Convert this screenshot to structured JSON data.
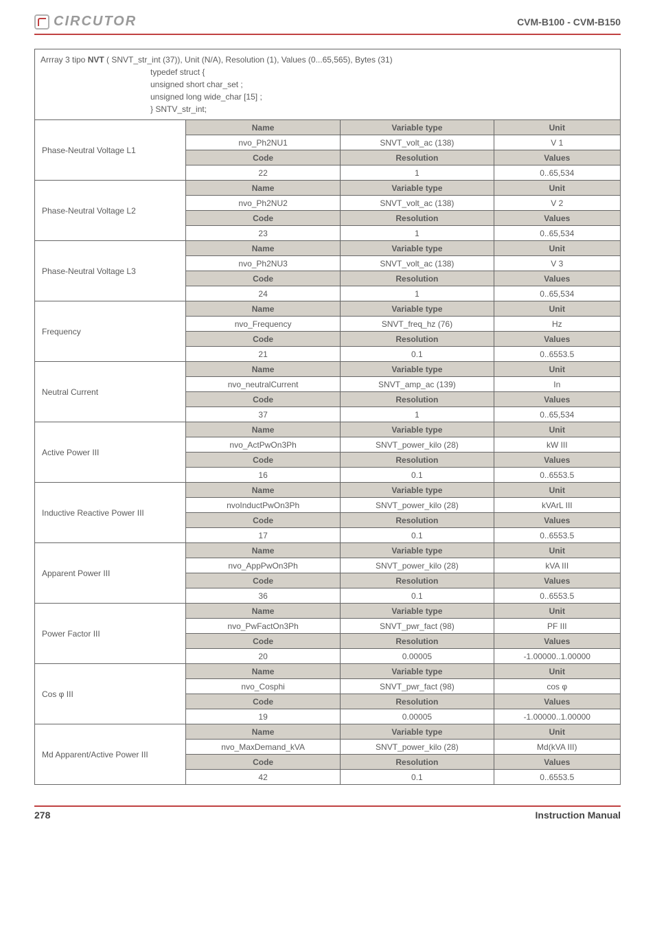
{
  "header": {
    "logo_text": "CIRCUTOR",
    "product": "CVM-B100 - CVM-B150"
  },
  "array_header": {
    "line1_pre": "Arrray 3 tipo ",
    "line1_bold": "NVT",
    "line1_post": " ( SNVT_str_int (37)), Unit (N/A), Resolution (1), Values (0...65,565), Bytes (31)",
    "struct1": "typedef struct {",
    "struct2": "unsigned short char_set ;",
    "struct3": "unsigned long wide_char [15] ;",
    "struct4": "} SNTV_str_int;"
  },
  "col_headers": {
    "name": "Name",
    "vtype": "Variable type",
    "unit": "Unit",
    "code": "Code",
    "res": "Resolution",
    "values": "Values"
  },
  "rows": [
    {
      "label": "Phase-Neutral Voltage L1",
      "name": "nvo_Ph2NU1",
      "vtype": "SNVT_volt_ac (138)",
      "unit": "V 1",
      "code": "22",
      "res": "1",
      "values": "0..65,534"
    },
    {
      "label": "Phase-Neutral Voltage L2",
      "name": "nvo_Ph2NU2",
      "vtype": "SNVT_volt_ac (138)",
      "unit": "V 2",
      "code": "23",
      "res": "1",
      "values": "0..65,534"
    },
    {
      "label": "Phase-Neutral Voltage L3",
      "name": "nvo_Ph2NU3",
      "vtype": "SNVT_volt_ac (138)",
      "unit": "V 3",
      "code": "24",
      "res": "1",
      "values": "0..65,534"
    },
    {
      "label": "Frequency",
      "name": "nvo_Frequency",
      "vtype": "SNVT_freq_hz (76)",
      "unit": "Hz",
      "code": "21",
      "res": "0.1",
      "values": "0..6553.5"
    },
    {
      "label": "Neutral Current",
      "name": "nvo_neutralCurrent",
      "vtype": "SNVT_amp_ac (139)",
      "unit": "In",
      "code": "37",
      "res": "1",
      "values": "0..65,534"
    },
    {
      "label": "Active Power III",
      "name": "nvo_ActPwOn3Ph",
      "vtype": "SNVT_power_kilo (28)",
      "unit": "kW III",
      "code": "16",
      "res": "0.1",
      "values": "0..6553.5"
    },
    {
      "label": "Inductive Reactive Power III",
      "name": "nvoInductPwOn3Ph",
      "vtype": "SNVT_power_kilo (28)",
      "unit": "kVArL III",
      "code": "17",
      "res": "0.1",
      "values": "0..6553.5"
    },
    {
      "label": "Apparent Power III",
      "name": "nvo_AppPwOn3Ph",
      "vtype": "SNVT_power_kilo (28)",
      "unit": "kVA III",
      "code": "36",
      "res": "0.1",
      "values": "0..6553.5"
    },
    {
      "label": "Power Factor III",
      "name": "nvo_PwFactOn3Ph",
      "vtype": "SNVT_pwr_fact (98)",
      "unit": "PF III",
      "code": "20",
      "res": "0.00005",
      "values": "-1.00000..1.00000"
    },
    {
      "label": "Cos φ III",
      "name": "nvo_Cosphi",
      "vtype": "SNVT_pwr_fact (98)",
      "unit": "cos φ",
      "code": "19",
      "res": "0.00005",
      "values": "-1.00000..1.00000"
    },
    {
      "label": "Md Apparent/Active Power III",
      "name": "nvo_MaxDemand_kVA",
      "vtype": "SNVT_power_kilo (28)",
      "unit": "Md(kVA III)",
      "code": "42",
      "res": "0.1",
      "values": "0..6553.5"
    }
  ],
  "footer": {
    "page": "278",
    "label": "Instruction Manual"
  },
  "styling": {
    "accent_color": "#c04040",
    "shaded_bg": "#d4d0c8",
    "border_color": "#666666",
    "text_color": "#5a5a5a",
    "font_size_table": 12,
    "font_size_header": 14
  }
}
